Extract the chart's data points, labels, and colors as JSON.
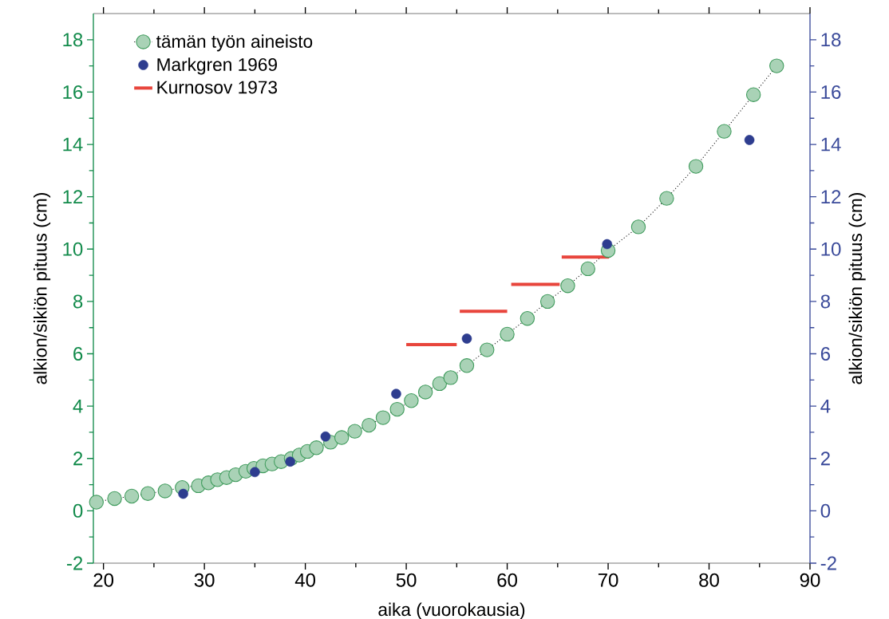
{
  "chart_data": {
    "type": "line",
    "xlabel": "aika (vuorokausia)",
    "ylabel": "alkion/sikiön pituus (cm)",
    "y2label": "alkion/sikiön pituus (cm)",
    "xlim": [
      19,
      90
    ],
    "xticks": [
      20,
      30,
      40,
      50,
      60,
      70,
      80,
      90
    ],
    "ylim": [
      -2,
      19
    ],
    "yticks": [
      -2,
      0,
      2,
      4,
      6,
      8,
      10,
      12,
      14,
      16,
      18
    ],
    "y2lim": [
      -2,
      19
    ],
    "y2ticks": [
      -2,
      0,
      2,
      4,
      6,
      8,
      10,
      12,
      14,
      16,
      18
    ],
    "legend": "top left",
    "grid": false,
    "series": [
      {
        "name": "tämän työn aineisto",
        "marker": "circle",
        "line_style": "dotted",
        "color": "#3f9b5c",
        "x": [
          19.3,
          21.1,
          22.8,
          24.4,
          26.1,
          27.8,
          29.4,
          30.4,
          31.3,
          32.2,
          33.1,
          34.1,
          34.9,
          35.8,
          36.7,
          37.6,
          38.6,
          39.4,
          40.2,
          41.1,
          42.5,
          43.6,
          44.9,
          46.3,
          47.7,
          49.1,
          50.5,
          51.9,
          53.3,
          54.4,
          56,
          58,
          60,
          62,
          64,
          66,
          68,
          70,
          73,
          75.8,
          78.7,
          81.5,
          84.4,
          86.7
        ],
        "values": [
          0.33,
          0.47,
          0.56,
          0.66,
          0.76,
          0.89,
          0.96,
          1.07,
          1.19,
          1.27,
          1.38,
          1.51,
          1.62,
          1.72,
          1.79,
          1.88,
          2.0,
          2.13,
          2.27,
          2.41,
          2.62,
          2.8,
          3.04,
          3.27,
          3.56,
          3.88,
          4.21,
          4.54,
          4.86,
          5.09,
          5.55,
          6.15,
          6.75,
          7.35,
          8.0,
          8.6,
          9.25,
          9.95,
          10.85,
          11.94,
          13.16,
          14.5,
          15.9,
          17.0
        ]
      },
      {
        "name": "Markgren 1969",
        "type": "scatter",
        "marker": "circle",
        "color": "#2e3d8f",
        "x": [
          27.9,
          35.0,
          38.5,
          42.0,
          49.0,
          56.0,
          69.9,
          84.0
        ],
        "values": [
          0.65,
          1.48,
          1.88,
          2.84,
          4.47,
          6.58,
          10.19,
          14.17
        ]
      },
      {
        "name": "Kurnosov 1973",
        "type": "line",
        "marker": "none",
        "line_style": "solid",
        "color": "#e8453c",
        "x": [
          50.0,
          55.0,
          55.15,
          55.3,
          60.0,
          60.2,
          60.4,
          65.2,
          65.3,
          65.4,
          70.1
        ],
        "values": [
          6.35,
          6.35,
          null,
          7.62,
          7.62,
          null,
          8.65,
          8.65,
          null,
          9.7,
          9.7
        ]
      }
    ]
  }
}
